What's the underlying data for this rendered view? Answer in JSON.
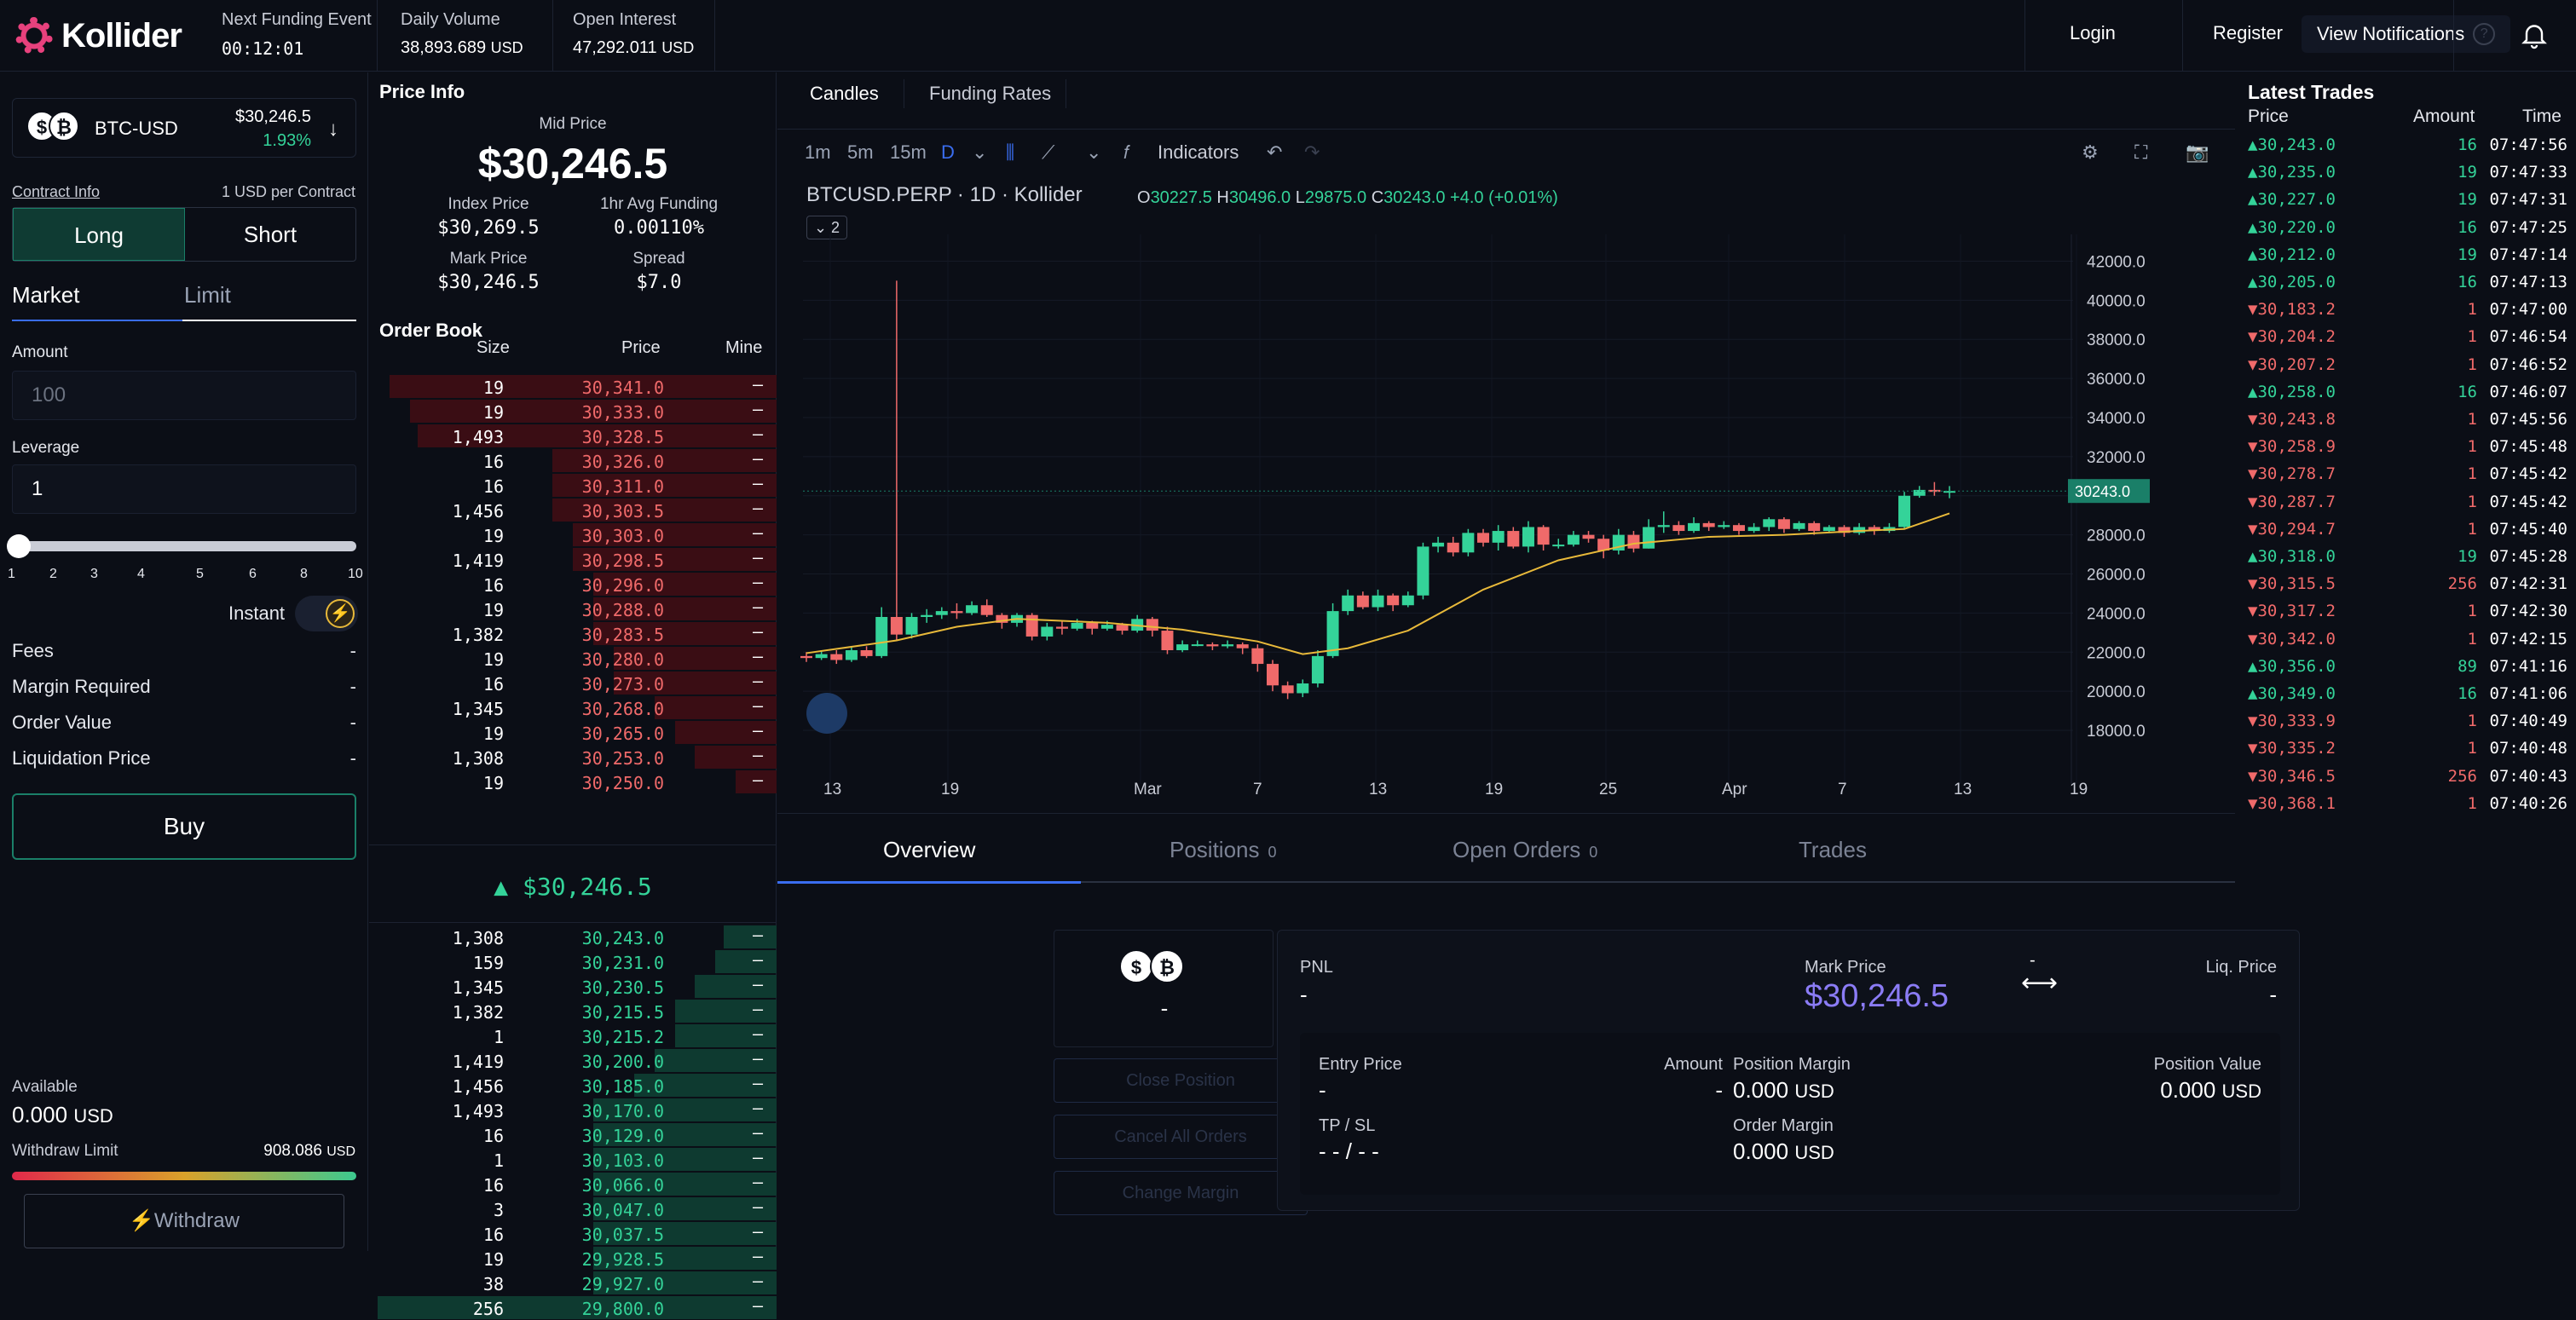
{
  "header": {
    "logo_text": "Kollider",
    "funding_label": "Next Funding Event",
    "funding_value": "00:12:01",
    "volume_label": "Daily Volume",
    "volume_value": "38,893.689",
    "volume_unit": "USD",
    "oi_label": "Open Interest",
    "oi_value": "47,292.011",
    "oi_unit": "USD",
    "login": "Login",
    "register": "Register",
    "notifications": "View Notifications",
    "help": "?"
  },
  "order_form": {
    "pair": "BTC-USD",
    "pair_price": "$30,246.5",
    "pair_change": "1.93%",
    "coin_a": "$",
    "coin_b": "₿",
    "contract_info_label": "Contract Info",
    "contract_info_value": "1 USD per Contract",
    "long": "Long",
    "short": "Short",
    "tab_market": "Market",
    "tab_limit": "Limit",
    "amount_label": "Amount",
    "amount_placeholder": "100",
    "leverage_label": "Leverage",
    "leverage_value": "1",
    "leverage_ticks": [
      "1",
      "2",
      "3",
      "4",
      "5",
      "6",
      "8",
      "10"
    ],
    "instant_label": "Instant",
    "fees_label": "Fees",
    "margin_label": "Margin Required",
    "order_value_label": "Order Value",
    "liq_label": "Liquidation Price",
    "dash": "-",
    "buy": "Buy",
    "available_label": "Available",
    "available_value": "0.000",
    "available_unit": "USD",
    "withdraw_limit_label": "Withdraw Limit",
    "withdraw_limit_value": "908.086",
    "withdraw_limit_unit": "USD",
    "withdraw": "⚡Withdraw"
  },
  "price_info": {
    "title": "Price Info",
    "mid_label": "Mid Price",
    "mid_value": "$30,246.5",
    "index_label": "Index Price",
    "index_value": "$30,269.5",
    "funding_label": "1hr Avg Funding",
    "funding_value": "0.00110%",
    "mark_label": "Mark Price",
    "mark_value": "$30,246.5",
    "spread_label": "Spread",
    "spread_value": "$7.0"
  },
  "order_book": {
    "title": "Order Book",
    "col_size": "Size",
    "col_price": "Price",
    "col_mine": "Mine",
    "mid_price": "▲ $30,246.5",
    "asks": [
      {
        "size": "19",
        "price": "30,341.0",
        "mine": "–",
        "depth": 0.95
      },
      {
        "size": "19",
        "price": "30,333.0",
        "mine": "–",
        "depth": 0.9
      },
      {
        "size": "1,493",
        "price": "30,328.5",
        "mine": "–",
        "depth": 0.88
      },
      {
        "size": "16",
        "price": "30,326.0",
        "mine": "–",
        "depth": 0.55
      },
      {
        "size": "16",
        "price": "30,311.0",
        "mine": "–",
        "depth": 0.55
      },
      {
        "size": "1,456",
        "price": "30,303.5",
        "mine": "–",
        "depth": 0.55
      },
      {
        "size": "19",
        "price": "30,303.0",
        "mine": "–",
        "depth": 0.5
      },
      {
        "size": "1,419",
        "price": "30,298.5",
        "mine": "–",
        "depth": 0.5
      },
      {
        "size": "16",
        "price": "30,296.0",
        "mine": "–",
        "depth": 0.45
      },
      {
        "size": "19",
        "price": "30,288.0",
        "mine": "–",
        "depth": 0.45
      },
      {
        "size": "1,382",
        "price": "30,283.5",
        "mine": "–",
        "depth": 0.45
      },
      {
        "size": "19",
        "price": "30,280.0",
        "mine": "–",
        "depth": 0.4
      },
      {
        "size": "16",
        "price": "30,273.0",
        "mine": "–",
        "depth": 0.4
      },
      {
        "size": "1,345",
        "price": "30,268.0",
        "mine": "–",
        "depth": 0.3
      },
      {
        "size": "19",
        "price": "30,265.0",
        "mine": "–",
        "depth": 0.25
      },
      {
        "size": "1,308",
        "price": "30,253.0",
        "mine": "–",
        "depth": 0.2
      },
      {
        "size": "19",
        "price": "30,250.0",
        "mine": "–",
        "depth": 0.1
      }
    ],
    "bids": [
      {
        "size": "1,308",
        "price": "30,243.0",
        "mine": "–",
        "depth": 0.13
      },
      {
        "size": "159",
        "price": "30,231.0",
        "mine": "–",
        "depth": 0.15
      },
      {
        "size": "1,345",
        "price": "30,230.5",
        "mine": "–",
        "depth": 0.2
      },
      {
        "size": "1,382",
        "price": "30,215.5",
        "mine": "–",
        "depth": 0.25
      },
      {
        "size": "1",
        "price": "30,215.2",
        "mine": "–",
        "depth": 0.25
      },
      {
        "size": "1,419",
        "price": "30,200.0",
        "mine": "–",
        "depth": 0.3
      },
      {
        "size": "1,456",
        "price": "30,185.0",
        "mine": "–",
        "depth": 0.35
      },
      {
        "size": "1,493",
        "price": "30,170.0",
        "mine": "–",
        "depth": 0.45
      },
      {
        "size": "16",
        "price": "30,129.0",
        "mine": "–",
        "depth": 0.45
      },
      {
        "size": "1",
        "price": "30,103.0",
        "mine": "–",
        "depth": 0.45
      },
      {
        "size": "16",
        "price": "30,066.0",
        "mine": "–",
        "depth": 0.45
      },
      {
        "size": "3",
        "price": "30,047.0",
        "mine": "–",
        "depth": 0.45
      },
      {
        "size": "16",
        "price": "30,037.5",
        "mine": "–",
        "depth": 0.45
      },
      {
        "size": "19",
        "price": "29,928.5",
        "mine": "–",
        "depth": 0.45
      },
      {
        "size": "38",
        "price": "29,927.0",
        "mine": "–",
        "depth": 0.45
      },
      {
        "size": "256",
        "price": "29,800.0",
        "mine": "–",
        "depth": 0.98
      }
    ]
  },
  "chart": {
    "tab_candles": "Candles",
    "tab_funding": "Funding Rates",
    "intervals": [
      "1m",
      "5m",
      "15m",
      "D"
    ],
    "indicators": "Indicators",
    "symbol": "BTCUSD.PERP · 1D · Kollider",
    "o_label": "O",
    "o": "30227.5",
    "h_label": "H",
    "h": "30496.0",
    "l_label": "L",
    "l": "29875.0",
    "c_label": "C",
    "c": "30243.0",
    "change": "+4.0 (+0.01%)",
    "collapse": "⌄ 2",
    "last_price": "30243.0"
  },
  "chart_data": {
    "type": "candlestick",
    "title": "BTCUSD.PERP · 1D · Kollider",
    "xlabel": "",
    "ylabel": "",
    "ylim": [
      17000,
      42500
    ],
    "y_ticks": [
      "42000.0",
      "40000.0",
      "38000.0",
      "36000.0",
      "34000.0",
      "32000.0",
      "30000.0",
      "28000.0",
      "26000.0",
      "24000.0",
      "22000.0",
      "20000.0",
      "18000.0"
    ],
    "x_ticks": [
      "13",
      "19",
      "Mar",
      "7",
      "13",
      "19",
      "25",
      "Apr",
      "7",
      "13",
      "19"
    ],
    "candles": [
      [
        21800,
        21700,
        22000,
        21500
      ],
      [
        21700,
        21900,
        22100,
        21600
      ],
      [
        21900,
        21600,
        22100,
        21400
      ],
      [
        21600,
        22100,
        22300,
        21500
      ],
      [
        22100,
        21800,
        22300,
        21700
      ],
      [
        21800,
        23800,
        24300,
        21700
      ],
      [
        23800,
        22900,
        41000,
        22600
      ],
      [
        22900,
        23800,
        24000,
        22700
      ],
      [
        23800,
        23900,
        24200,
        23500
      ],
      [
        23900,
        24100,
        24300,
        23700
      ],
      [
        24100,
        24000,
        24500,
        23700
      ],
      [
        24000,
        24400,
        24600,
        23900
      ],
      [
        24400,
        23900,
        24700,
        23800
      ],
      [
        23900,
        23500,
        24000,
        23200
      ],
      [
        23500,
        23900,
        24000,
        23300
      ],
      [
        23900,
        22800,
        24000,
        22600
      ],
      [
        22800,
        23300,
        23500,
        22600
      ],
      [
        23300,
        23200,
        23600,
        22900
      ],
      [
        23200,
        23500,
        23700,
        23100
      ],
      [
        23500,
        23200,
        23600,
        22900
      ],
      [
        23200,
        23400,
        23600,
        23100
      ],
      [
        23400,
        23100,
        23500,
        22900
      ],
      [
        23100,
        23700,
        23900,
        23000
      ],
      [
        23700,
        23100,
        23800,
        22800
      ],
      [
        23100,
        22100,
        23300,
        21900
      ],
      [
        22100,
        22400,
        22600,
        22000
      ],
      [
        22400,
        22400,
        22600,
        22300
      ],
      [
        22400,
        22300,
        22500,
        22100
      ],
      [
        22300,
        22400,
        22600,
        22200
      ],
      [
        22400,
        22200,
        22500,
        21900
      ],
      [
        22200,
        21400,
        22400,
        21000
      ],
      [
        21400,
        20300,
        21600,
        20000
      ],
      [
        20300,
        19900,
        20500,
        19600
      ],
      [
        19900,
        20400,
        20600,
        19700
      ],
      [
        20400,
        21800,
        22100,
        20200
      ],
      [
        21800,
        24100,
        24500,
        21700
      ],
      [
        24100,
        24900,
        25200,
        23900
      ],
      [
        24900,
        24300,
        25100,
        24200
      ],
      [
        24300,
        24900,
        25200,
        24100
      ],
      [
        24900,
        24400,
        25000,
        24100
      ],
      [
        24400,
        24900,
        25100,
        24300
      ],
      [
        24900,
        27400,
        27600,
        24700
      ],
      [
        27400,
        27600,
        27900,
        27100
      ],
      [
        27600,
        27100,
        27900,
        26900
      ],
      [
        27100,
        28100,
        28300,
        26900
      ],
      [
        28100,
        27600,
        28300,
        27400
      ],
      [
        27600,
        28200,
        28500,
        27200
      ],
      [
        28200,
        27400,
        28400,
        27300
      ],
      [
        27400,
        28400,
        28700,
        27100
      ],
      [
        28400,
        27500,
        28500,
        27200
      ],
      [
        27500,
        27500,
        27800,
        27300
      ],
      [
        27500,
        28000,
        28200,
        27400
      ],
      [
        28000,
        27800,
        28200,
        27600
      ],
      [
        27800,
        27200,
        28000,
        26800
      ],
      [
        27200,
        28000,
        28300,
        27000
      ],
      [
        28000,
        27300,
        28200,
        27100
      ],
      [
        27300,
        28400,
        28800,
        27300
      ],
      [
        28400,
        28500,
        29200,
        28100
      ],
      [
        28500,
        28200,
        28700,
        28000
      ],
      [
        28200,
        28600,
        28900,
        28100
      ],
      [
        28600,
        28400,
        28700,
        28200
      ],
      [
        28400,
        28500,
        28700,
        28300
      ],
      [
        28500,
        28200,
        28600,
        28000
      ],
      [
        28200,
        28400,
        28600,
        28100
      ],
      [
        28400,
        28800,
        28900,
        28200
      ],
      [
        28800,
        28300,
        28900,
        28100
      ],
      [
        28300,
        28600,
        28700,
        28200
      ],
      [
        28600,
        28200,
        28700,
        28000
      ],
      [
        28200,
        28400,
        28500,
        28100
      ],
      [
        28400,
        28100,
        28500,
        27900
      ],
      [
        28100,
        28400,
        28600,
        28000
      ],
      [
        28400,
        28200,
        28500,
        28000
      ],
      [
        28200,
        28400,
        28600,
        28100
      ],
      [
        28400,
        30000,
        30200,
        28300
      ],
      [
        30000,
        30300,
        30500,
        29900
      ],
      [
        30300,
        30200,
        30700,
        30000
      ],
      [
        30200,
        30243,
        30496,
        29875
      ]
    ],
    "ma_series": [
      [
        0,
        21950
      ],
      [
        6,
        22600
      ],
      [
        10,
        23300
      ],
      [
        14,
        23700
      ],
      [
        20,
        23500
      ],
      [
        25,
        23150
      ],
      [
        30,
        22550
      ],
      [
        33,
        21900
      ],
      [
        36,
        22200
      ],
      [
        40,
        23100
      ],
      [
        45,
        25200
      ],
      [
        50,
        26700
      ],
      [
        55,
        27550
      ],
      [
        60,
        27900
      ],
      [
        65,
        28000
      ],
      [
        70,
        28200
      ],
      [
        73,
        28300
      ],
      [
        76,
        29100
      ]
    ]
  },
  "trades": {
    "title": "Latest Trades",
    "col_price": "Price",
    "col_amount": "Amount",
    "col_time": "Time",
    "rows": [
      {
        "side": "up",
        "price": "30,243.0",
        "amount": "16",
        "time": "07:47:56"
      },
      {
        "side": "up",
        "price": "30,235.0",
        "amount": "19",
        "time": "07:47:33"
      },
      {
        "side": "up",
        "price": "30,227.0",
        "amount": "19",
        "time": "07:47:31"
      },
      {
        "side": "up",
        "price": "30,220.0",
        "amount": "16",
        "time": "07:47:25"
      },
      {
        "side": "up",
        "price": "30,212.0",
        "amount": "19",
        "time": "07:47:14"
      },
      {
        "side": "up",
        "price": "30,205.0",
        "amount": "16",
        "time": "07:47:13"
      },
      {
        "side": "dn",
        "price": "30,183.2",
        "amount": "1",
        "time": "07:47:00"
      },
      {
        "side": "dn",
        "price": "30,204.2",
        "amount": "1",
        "time": "07:46:54"
      },
      {
        "side": "dn",
        "price": "30,207.2",
        "amount": "1",
        "time": "07:46:52"
      },
      {
        "side": "up",
        "price": "30,258.0",
        "amount": "16",
        "time": "07:46:07"
      },
      {
        "side": "dn",
        "price": "30,243.8",
        "amount": "1",
        "time": "07:45:56"
      },
      {
        "side": "dn",
        "price": "30,258.9",
        "amount": "1",
        "time": "07:45:48"
      },
      {
        "side": "dn",
        "price": "30,278.7",
        "amount": "1",
        "time": "07:45:42"
      },
      {
        "side": "dn",
        "price": "30,287.7",
        "amount": "1",
        "time": "07:45:42"
      },
      {
        "side": "dn",
        "price": "30,294.7",
        "amount": "1",
        "time": "07:45:40"
      },
      {
        "side": "up",
        "price": "30,318.0",
        "amount": "19",
        "time": "07:45:28"
      },
      {
        "side": "dn",
        "price": "30,315.5",
        "amount": "256",
        "time": "07:42:31"
      },
      {
        "side": "dn",
        "price": "30,317.2",
        "amount": "1",
        "time": "07:42:30"
      },
      {
        "side": "dn",
        "price": "30,342.0",
        "amount": "1",
        "time": "07:42:15"
      },
      {
        "side": "up",
        "price": "30,356.0",
        "amount": "89",
        "time": "07:41:16"
      },
      {
        "side": "up",
        "price": "30,349.0",
        "amount": "16",
        "time": "07:41:06"
      },
      {
        "side": "dn",
        "price": "30,333.9",
        "amount": "1",
        "time": "07:40:49"
      },
      {
        "side": "dn",
        "price": "30,335.2",
        "amount": "1",
        "time": "07:40:48"
      },
      {
        "side": "dn",
        "price": "30,346.5",
        "amount": "256",
        "time": "07:40:43"
      },
      {
        "side": "dn",
        "price": "30,368.1",
        "amount": "1",
        "time": "07:40:26"
      }
    ]
  },
  "bottom": {
    "tab_overview": "Overview",
    "tab_positions": "Positions",
    "positions_count": "0",
    "tab_open_orders": "Open Orders",
    "open_orders_count": "0",
    "tab_trades": "Trades",
    "coin_dash": "-",
    "close_position": "Close Position",
    "cancel_all": "Cancel All Orders",
    "change_margin": "Change Margin",
    "pnl_label": "PNL",
    "pnl_value": "-",
    "mark_label": "Mark Price",
    "mark_value": "$30,246.5",
    "arrow_top": "-",
    "liq_label": "Liq. Price",
    "liq_value": "-",
    "entry_label": "Entry Price",
    "entry_value": "-",
    "amount_label": "Amount",
    "amount_value": "-",
    "pos_margin_label": "Position Margin",
    "pos_margin_value": "0.000",
    "pos_value_label": "Position Value",
    "pos_value_value": "0.000",
    "unit": "USD",
    "tpsl_label": "TP / SL",
    "tpsl_value": "- - / - -",
    "order_margin_label": "Order Margin",
    "order_margin_value": "0.000"
  },
  "colors": {
    "up": "#34d399",
    "down": "#f06a6a",
    "accent": "#3a6df0",
    "mark": "#8b7cf6"
  }
}
